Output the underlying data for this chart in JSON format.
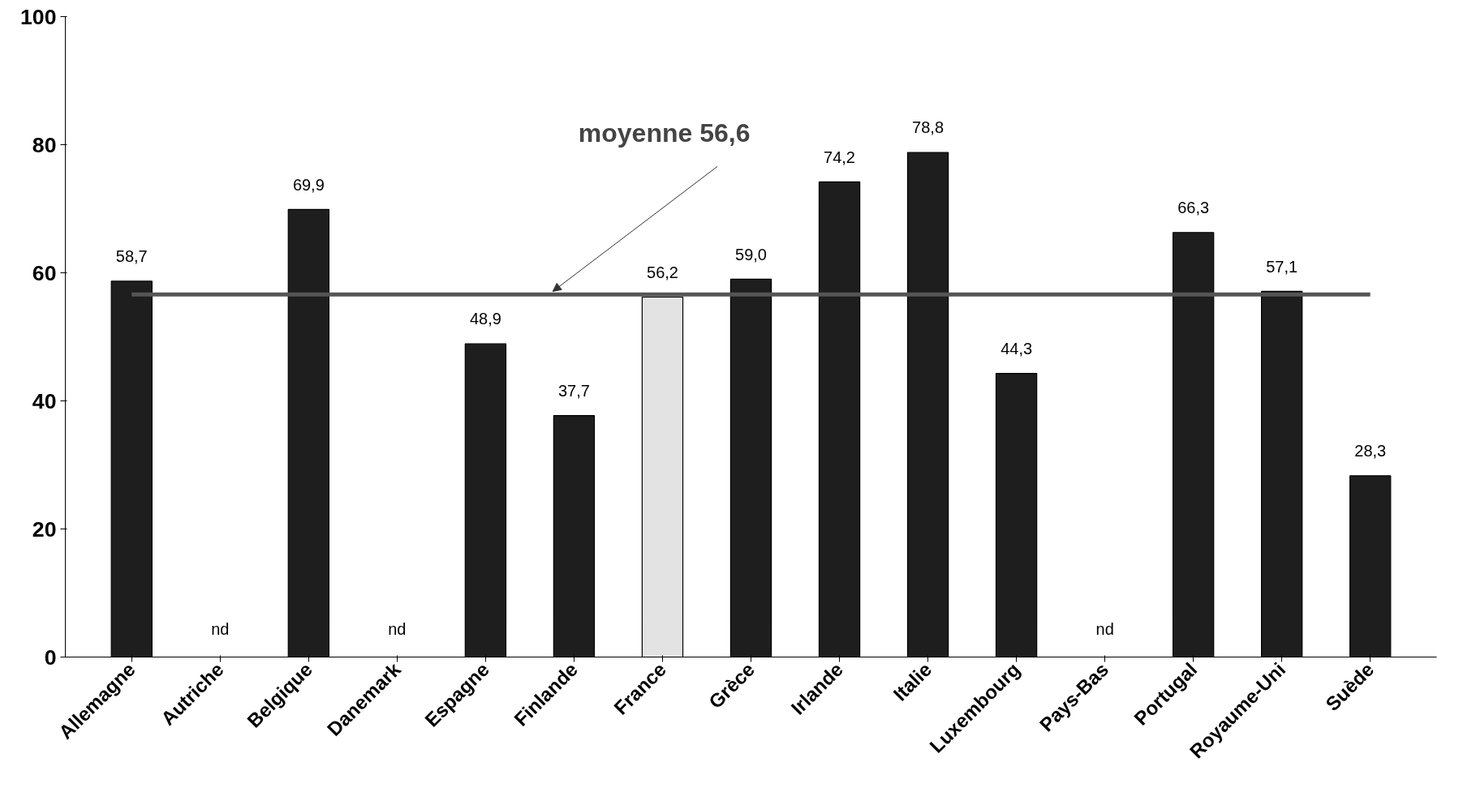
{
  "chart_data": {
    "type": "bar",
    "categories": [
      "Allemagne",
      "Autriche",
      "Belgique",
      "Danemark",
      "Espagne",
      "Finlande",
      "France",
      "Grèce",
      "Irlande",
      "Italie",
      "Luxembourg",
      "Pays-Bas",
      "Portugal",
      "Royaume-Uni",
      "Suède"
    ],
    "values": [
      58.7,
      null,
      69.9,
      null,
      48.9,
      37.7,
      56.2,
      59.0,
      74.2,
      78.8,
      44.3,
      null,
      66.3,
      57.1,
      28.3
    ],
    "value_labels": [
      "58,7",
      "nd",
      "69,9",
      "nd",
      "48,9",
      "37,7",
      "56,2",
      "59,0",
      "74,2",
      "78,8",
      "44,3",
      "nd",
      "66,3",
      "57,1",
      "28,3"
    ],
    "colors": [
      "#1e1e1e",
      "#1e1e1e",
      "#1e1e1e",
      "#1e1e1e",
      "#1e1e1e",
      "#1e1e1e",
      "#e3e3e3",
      "#1e1e1e",
      "#1e1e1e",
      "#1e1e1e",
      "#1e1e1e",
      "#1e1e1e",
      "#1e1e1e",
      "#1e1e1e",
      "#1e1e1e"
    ],
    "ylim": [
      0,
      100
    ],
    "yticks": [
      0,
      20,
      40,
      60,
      80,
      100
    ],
    "grid": false,
    "ref_lines": [
      {
        "axis": "y",
        "value": 56.6,
        "label": "moyenne 56,6",
        "color": "#555555"
      }
    ]
  }
}
